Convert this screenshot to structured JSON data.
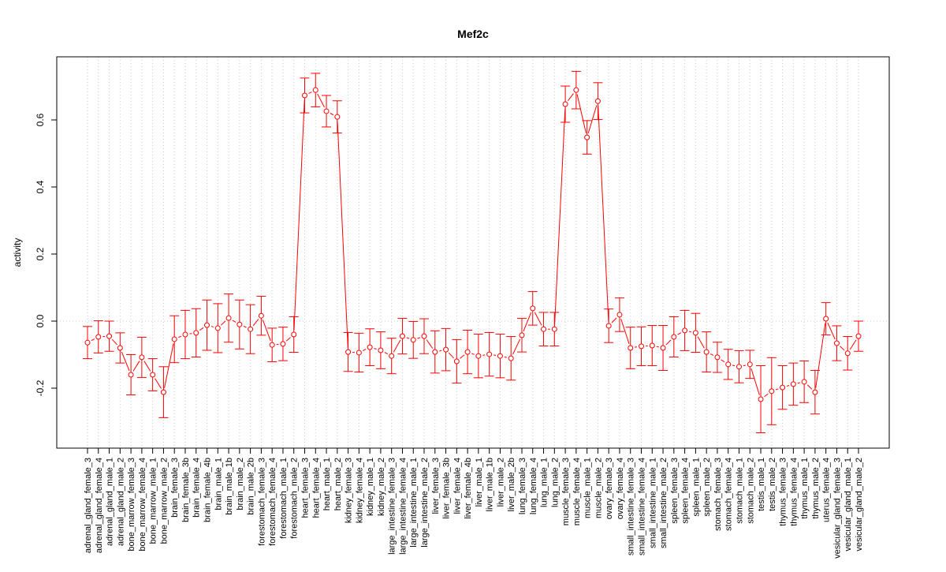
{
  "chart_data": {
    "type": "line",
    "title": "Mef2c",
    "xlabel": "",
    "ylabel": "activity",
    "ylim": [
      -0.38,
      0.78
    ],
    "yticks": [
      -0.2,
      0.0,
      0.2,
      0.4,
      0.6
    ],
    "ytick_labels": [
      "-0.2",
      "0.0",
      "0.2",
      "0.4",
      "0.6"
    ],
    "grid": true,
    "color": "#ff0000",
    "categories": [
      "adrenal_gland_female_3",
      "adrenal_gland_female_4",
      "adrenal_gland_male_1",
      "adrenal_gland_male_2",
      "bone_marrow_female_3",
      "bone_marrow_female_4",
      "bone_marrow_male_1",
      "bone_marrow_male_2",
      "brain_female_3",
      "brain_female_3b",
      "brain_female_4",
      "brain_female_4b",
      "brain_male_1",
      "brain_male_1b",
      "brain_male_2",
      "brain_male_2b",
      "forestomach_female_3",
      "forestomach_female_4",
      "forestomach_male_1",
      "forestomach_male_2",
      "heart_female_3",
      "heart_female_4",
      "heart_male_1",
      "heart_male_2",
      "kidney_female_3",
      "kidney_female_4",
      "kidney_male_1",
      "kidney_male_2",
      "large_intestine_female_3",
      "large_intestine_female_4",
      "large_intestine_male_1",
      "large_intestine_male_2",
      "liver_female_3",
      "liver_female_3b",
      "liver_female_4",
      "liver_female_4b",
      "liver_male_1",
      "liver_male_1b",
      "liver_male_2",
      "liver_male_2b",
      "lung_female_3",
      "lung_female_4",
      "lung_male_1",
      "lung_male_2",
      "muscle_female_3",
      "muscle_female_4",
      "muscle_male_1",
      "muscle_male_2",
      "ovary_female_3",
      "ovary_female_4",
      "small_intestine_female_3",
      "small_intestine_female_4",
      "small_intestine_male_1",
      "small_intestine_male_2",
      "spleen_female_3",
      "spleen_female_4",
      "spleen_male_1",
      "spleen_male_2",
      "stomach_female_3",
      "stomach_female_4",
      "stomach_male_1",
      "stomach_male_2",
      "testis_male_1",
      "testis_male_2",
      "thymus_female_3",
      "thymus_female_4",
      "thymus_male_1",
      "thymus_male_2",
      "uterus_female_4",
      "vesicular_gland_female_3",
      "vesicular_gland_male_1",
      "vesicular_gland_male_2"
    ],
    "values": [
      -0.064,
      -0.047,
      -0.045,
      -0.08,
      -0.16,
      -0.108,
      -0.16,
      -0.212,
      -0.054,
      -0.04,
      -0.035,
      -0.012,
      -0.021,
      0.009,
      -0.01,
      -0.024,
      0.016,
      -0.071,
      -0.068,
      -0.04,
      0.673,
      0.689,
      0.626,
      0.609,
      -0.092,
      -0.094,
      -0.078,
      -0.087,
      -0.104,
      -0.045,
      -0.056,
      -0.045,
      -0.092,
      -0.085,
      -0.12,
      -0.092,
      -0.104,
      -0.099,
      -0.104,
      -0.111,
      -0.042,
      0.038,
      -0.024,
      -0.024,
      0.647,
      0.689,
      0.548,
      0.656,
      -0.014,
      0.019,
      -0.08,
      -0.075,
      -0.073,
      -0.08,
      -0.047,
      -0.028,
      -0.035,
      -0.092,
      -0.108,
      -0.129,
      -0.136,
      -0.129,
      -0.233,
      -0.209,
      -0.198,
      -0.188,
      -0.181,
      -0.212,
      0.007,
      -0.066,
      -0.096,
      -0.045
    ],
    "errors": [
      0.048,
      0.048,
      0.045,
      0.045,
      0.06,
      0.06,
      0.048,
      0.076,
      0.07,
      0.072,
      0.072,
      0.075,
      0.073,
      0.072,
      0.073,
      0.073,
      0.058,
      0.05,
      0.05,
      0.053,
      0.052,
      0.05,
      0.047,
      0.048,
      0.058,
      0.058,
      0.055,
      0.055,
      0.053,
      0.053,
      0.055,
      0.052,
      0.063,
      0.063,
      0.065,
      0.065,
      0.065,
      0.065,
      0.065,
      0.065,
      0.05,
      0.05,
      0.05,
      0.05,
      0.054,
      0.056,
      0.05,
      0.055,
      0.05,
      0.05,
      0.062,
      0.058,
      0.06,
      0.067,
      0.06,
      0.06,
      0.058,
      0.06,
      0.045,
      0.045,
      0.048,
      0.042,
      0.1,
      0.1,
      0.065,
      0.063,
      0.062,
      0.065,
      0.048,
      0.052,
      0.05,
      0.045
    ]
  }
}
